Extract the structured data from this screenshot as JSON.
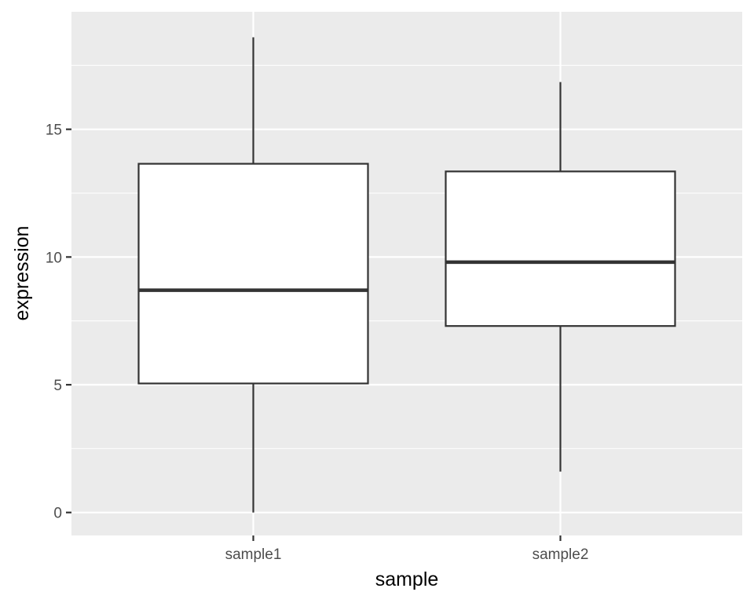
{
  "chart_data": {
    "type": "boxplot",
    "title": "",
    "xlabel": "sample",
    "ylabel": "expression",
    "categories": [
      "sample1",
      "sample2"
    ],
    "boxes": [
      {
        "category": "sample1",
        "min": 0.0,
        "q1": 5.05,
        "median": 8.7,
        "q3": 13.65,
        "max": 18.6
      },
      {
        "category": "sample2",
        "min": 1.6,
        "q1": 7.3,
        "median": 9.8,
        "q3": 13.35,
        "max": 16.85
      }
    ],
    "ylim": [
      -0.9,
      19.6
    ],
    "yticks": [
      0,
      5,
      10,
      15
    ],
    "yticks_minor": [
      2.5,
      7.5,
      12.5,
      17.5
    ],
    "grid": true,
    "legend": "none",
    "colors": {
      "panel": "#ebebeb",
      "grid": "#ffffff",
      "box_fill": "#ffffff",
      "box_stroke": "#333333",
      "tick_text": "#4d4d4d",
      "axis_title": "#000000"
    }
  }
}
